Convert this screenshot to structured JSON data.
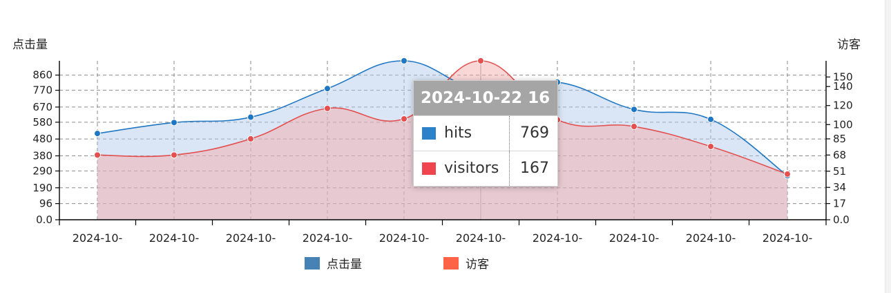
{
  "chart_data": {
    "type": "area",
    "categories": [
      "2024-10-",
      "2024-10-",
      "2024-10-",
      "2024-10-",
      "2024-10-",
      "2024-10-",
      "2024-10-",
      "2024-10-",
      "2024-10-",
      "2024-10-"
    ],
    "series": [
      {
        "name": "点击量",
        "axis": "left",
        "color": "#1f77c4",
        "fill": "#aec7e8",
        "values": [
          513,
          578,
          610,
          780,
          945,
          769,
          818,
          656,
          597,
          262
        ]
      },
      {
        "name": "访客",
        "axis": "right",
        "color": "#e35050",
        "fill": "#f4a6a6",
        "values": [
          68,
          68,
          85,
          117,
          106,
          167,
          105,
          98,
          77,
          48
        ]
      }
    ],
    "y_left": {
      "label": "点击量",
      "ticks": [
        "0.0",
        "96",
        "190",
        "290",
        "380",
        "480",
        "580",
        "670",
        "770",
        "860"
      ],
      "ylim": [
        0,
        945
      ]
    },
    "y_right": {
      "label": "访客",
      "ticks": [
        "0.0",
        "17",
        "34",
        "51",
        "68",
        "85",
        "100",
        "120",
        "140",
        "150"
      ],
      "ylim": [
        0,
        167
      ]
    },
    "grid": true,
    "legend": "bottom-center",
    "tooltip": {
      "title": "2024-10-22 16",
      "rows": [
        {
          "label": "hits",
          "value": "769",
          "color": "#2b82cb"
        },
        {
          "label": "visitors",
          "value": "167",
          "color": "#f0444f"
        }
      ],
      "category_index": 5
    },
    "legend_colors": {
      "hits": "#4682b4",
      "visitors": "#ff6347"
    }
  }
}
